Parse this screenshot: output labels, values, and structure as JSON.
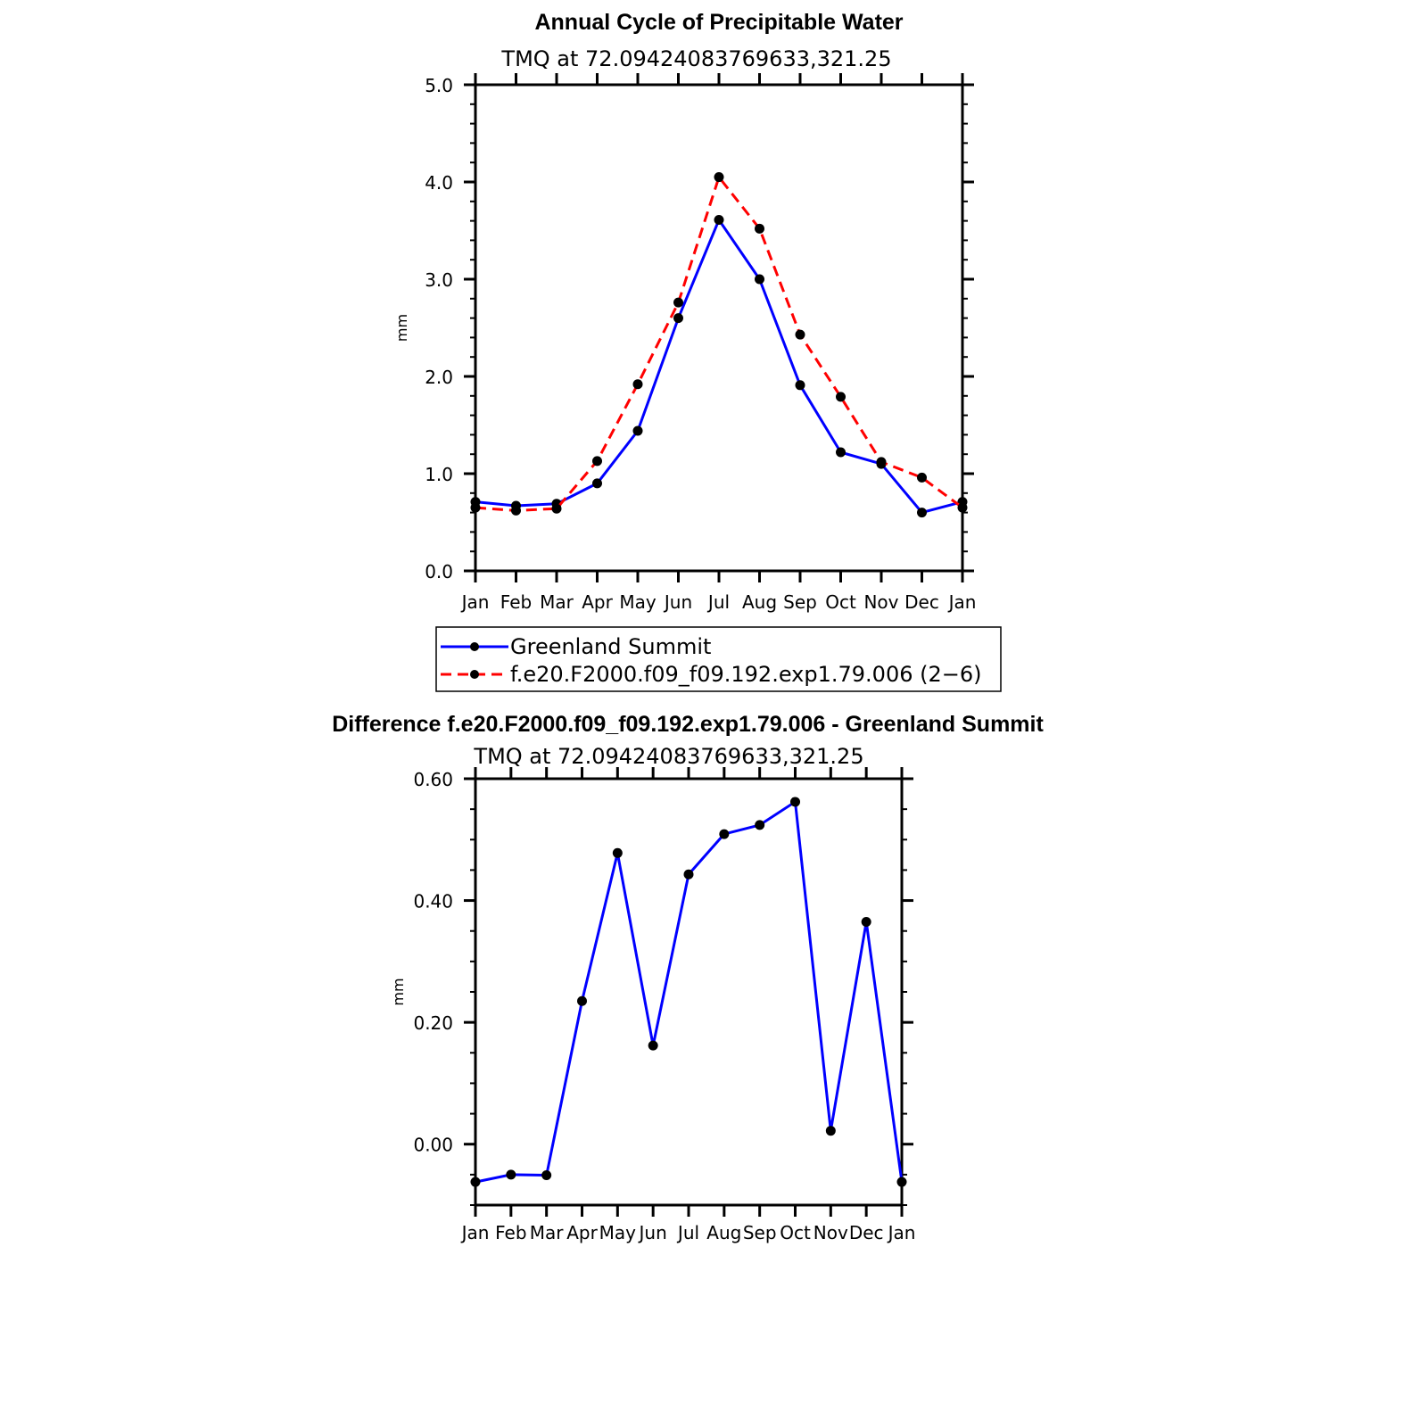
{
  "chart_data": [
    {
      "type": "line",
      "title": "Annual Cycle of Precipitable Water",
      "subtitle": "TMQ at 72.09424083769633,321.25",
      "ylabel": "mm",
      "ylim": [
        0,
        5
      ],
      "y_ticks": [
        "0.0",
        "1.0",
        "2.0",
        "3.0",
        "4.0",
        "5.0"
      ],
      "categories": [
        "Jan",
        "Feb",
        "Mar",
        "Apr",
        "May",
        "Jun",
        "Jul",
        "Aug",
        "Sep",
        "Oct",
        "Nov",
        "Dec",
        "Jan"
      ],
      "series": [
        {
          "name": "Greenland Summit",
          "color": "#0000ff",
          "style": "solid",
          "values": [
            0.71,
            0.67,
            0.69,
            0.9,
            1.44,
            2.6,
            3.61,
            3.0,
            1.91,
            1.22,
            1.1,
            0.6,
            0.71
          ]
        },
        {
          "name": "f.e20.F2000.f09_f09.192.exp1.79.006 (2−6)",
          "color": "#ff0000",
          "style": "dashed",
          "values": [
            0.65,
            0.62,
            0.64,
            1.13,
            1.92,
            2.76,
            4.05,
            3.52,
            2.43,
            1.79,
            1.12,
            0.96,
            0.65
          ]
        }
      ]
    },
    {
      "type": "line",
      "title": "Difference f.e20.F2000.f09_f09.192.exp1.79.006 - Greenland Summit",
      "subtitle": "TMQ at 72.09424083769633,321.25",
      "ylabel": "mm",
      "ylim": [
        -0.1,
        0.6
      ],
      "y_ticks": [
        "0.00",
        "0.20",
        "0.40",
        "0.60"
      ],
      "categories": [
        "Jan",
        "Feb",
        "Mar",
        "Apr",
        "May",
        "Jun",
        "Jul",
        "Aug",
        "Sep",
        "Oct",
        "Nov",
        "Dec",
        "Jan"
      ],
      "series": [
        {
          "color": "#0000ff",
          "style": "solid",
          "values": [
            -0.062,
            -0.05,
            -0.051,
            0.235,
            0.478,
            0.162,
            0.443,
            0.509,
            0.524,
            0.562,
            0.022,
            0.365,
            -0.062
          ]
        }
      ]
    }
  ]
}
